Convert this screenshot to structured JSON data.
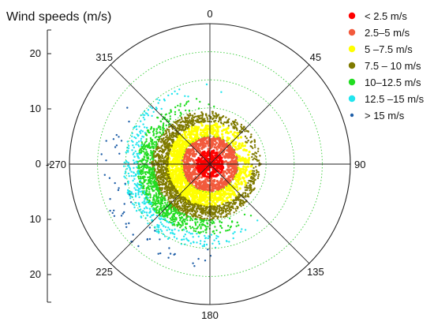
{
  "chart_data": {
    "type": "scatter",
    "subtype": "polar-wind-rose",
    "ylabel": "Wind speeds (m/s)",
    "left_axis_ticks": [
      {
        "label": "20",
        "value": 20
      },
      {
        "label": "10",
        "value": 10
      },
      {
        "label": "0",
        "value": 0
      },
      {
        "label": "10",
        "value": -10
      },
      {
        "label": "20",
        "value": -20
      }
    ],
    "radial_range": [
      0,
      25
    ],
    "radial_gridlines": [
      5,
      10,
      15,
      20
    ],
    "angle_ticks": [
      {
        "label": "0",
        "deg": 0
      },
      {
        "label": "45",
        "deg": 45
      },
      {
        "label": "90",
        "deg": 90
      },
      {
        "label": "135",
        "deg": 135
      },
      {
        "label": "180",
        "deg": 180
      },
      {
        "label": "225",
        "deg": 225
      },
      {
        "label": "-270",
        "deg": 270
      },
      {
        "label": "315",
        "deg": 315
      }
    ],
    "grid": true,
    "legend_position": "top-right",
    "series": [
      {
        "name": "< 2.5 m/s",
        "color": "#ff0000",
        "rmin": 0,
        "rmax": 2.5
      },
      {
        "name": "2.5–5 m/s",
        "color": "#f25a3c",
        "rmin": 2.5,
        "rmax": 5
      },
      {
        "name": "5 –7.5 m/s",
        "color": "#ffff00",
        "rmin": 5,
        "rmax": 7.5
      },
      {
        "name": "7.5  – 10 m/s",
        "color": "#7f7a00",
        "rmin": 7.5,
        "rmax": 10
      },
      {
        "name": "10–12.5 m/s",
        "color": "#22dd22",
        "rmin": 10,
        "rmax": 12.5
      },
      {
        "name": "12.5 –15 m/s",
        "color": "#22e5ee",
        "rmin": 12.5,
        "rmax": 15
      },
      {
        "name": "> 15 m/s",
        "color": "#1f5fa8",
        "rmin": 15,
        "rmax": 19
      }
    ],
    "dominant_direction_deg": 248
  }
}
